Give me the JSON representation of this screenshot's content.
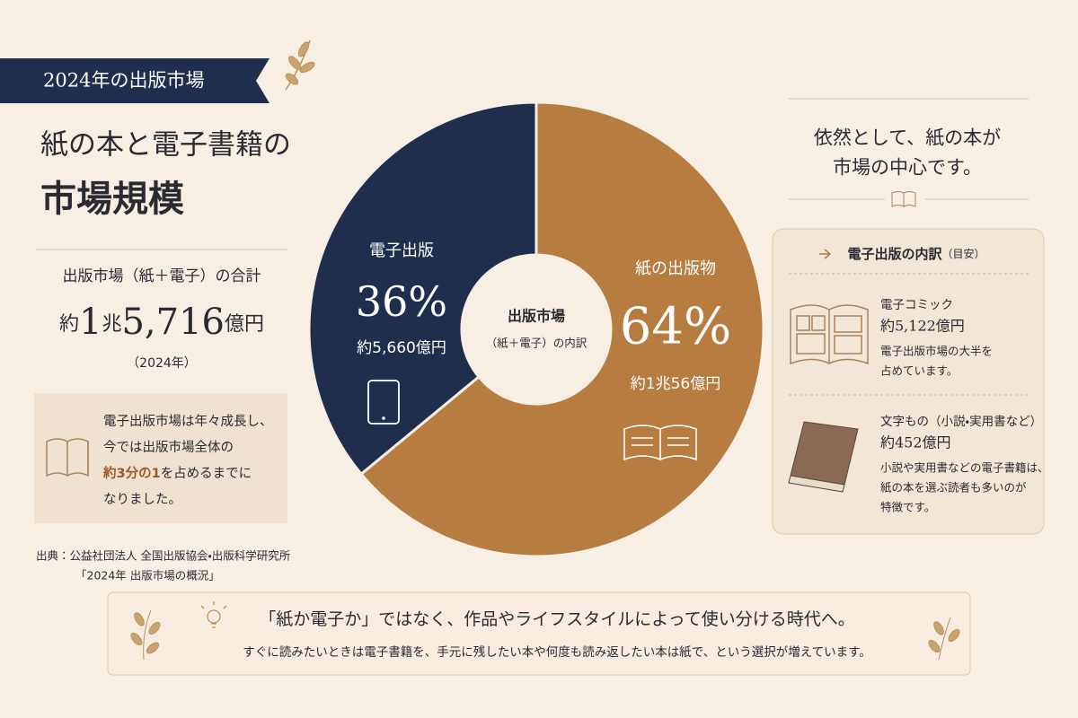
{
  "badge": "2024年の出版市場",
  "title": [
    "紙の本と電子書籍の",
    "市場規模"
  ],
  "total": {
    "label": "出版市場（紙＋電子）の合計",
    "value_parts": [
      "約",
      "1",
      "兆",
      "5,716",
      "億円"
    ],
    "year": "（2024年）"
  },
  "note": [
    "電子出版市場は年々成長し、",
    "今では出版市場全体の",
    "約3分の1",
    "を占めるまでに",
    "なりました。"
  ],
  "source": [
    "出典：公益社団法人 全国出版協会・出版科学研究所",
    "「2024年 出版市場の概況」"
  ],
  "chart_data": {
    "type": "donut",
    "center_label": [
      "出版市場",
      "（紙＋電子）の内訳"
    ],
    "categories": [
      "電子出版",
      "紙の出版物"
    ],
    "values": [
      36,
      64
    ],
    "value_labels": [
      "36%",
      "64%"
    ],
    "amounts": [
      "約5,660億円",
      "約1兆56億円"
    ],
    "colors": [
      "#1f2e4c",
      "#b67c40"
    ]
  },
  "headline": [
    "依然として、紙の本が",
    "市場の中心です。"
  ],
  "breakdown": {
    "title": "電子出版の内訳",
    "title_note": "（目安）",
    "items": [
      {
        "name": "電子コミック",
        "amount": "約5,122億円",
        "desc": [
          "電子出版市場の大半を",
          "占めています。"
        ]
      },
      {
        "name": "文字もの（小説・実用書など）",
        "amount": "約452億円",
        "desc": [
          "小説や実用書などの電子書籍は、",
          "紙の本を選ぶ読者も多いのが",
          "特徴です。"
        ]
      }
    ]
  },
  "footer": {
    "main": "「紙か電子か」ではなく、作品やライフスタイルによって使い分ける時代へ。",
    "sub": "すぐに読みたいときは電子書籍を、手元に残したい本や何度も読み返したい本は紙で、という選択が増えています。"
  }
}
